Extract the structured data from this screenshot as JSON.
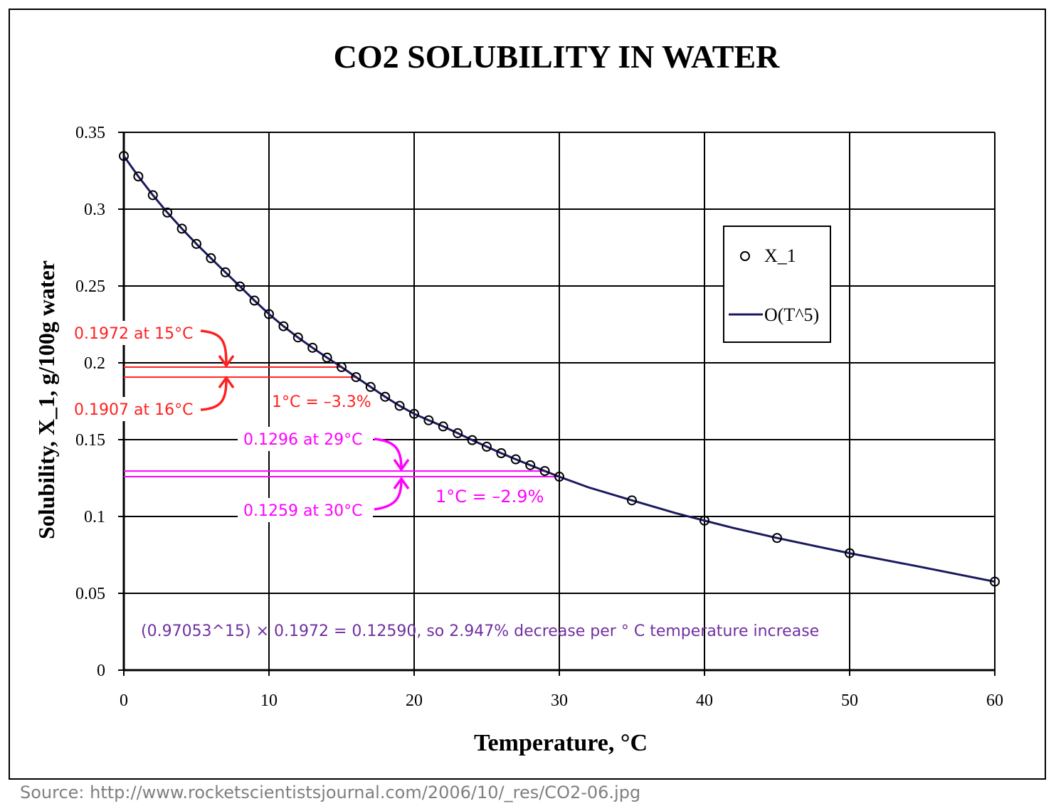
{
  "chart_data": {
    "type": "line",
    "title": "CO2 SOLUBILITY IN WATER",
    "xlabel": "Temperature, °C",
    "ylabel": "Solubility, X_1, g/100g water",
    "xlim": [
      0,
      60
    ],
    "ylim": [
      0,
      0.35
    ],
    "x_ticks": [
      0,
      10,
      20,
      30,
      40,
      50,
      60
    ],
    "x_tick_labels": [
      "0",
      "10",
      "20",
      "30",
      "40",
      "50",
      "60"
    ],
    "y_ticks": [
      0,
      0.05,
      0.1,
      0.15,
      0.2,
      0.25,
      0.3,
      0.35
    ],
    "y_tick_labels": [
      "0",
      "0.05",
      "0.1",
      "0.15",
      "0.2",
      "0.25",
      "0.3",
      "0.35"
    ],
    "grid": true,
    "legend_position": "right",
    "series": [
      {
        "name": "X_1",
        "kind": "markers",
        "marker": "open-circle",
        "color": "#000000",
        "x": [
          0,
          1,
          2,
          3,
          4,
          5,
          6,
          7,
          8,
          9,
          10,
          11,
          12,
          13,
          14,
          15,
          16,
          17,
          18,
          19,
          20,
          21,
          22,
          23,
          24,
          25,
          26,
          27,
          28,
          29,
          30,
          35,
          40,
          45,
          50,
          60
        ],
        "y": [
          0.3346,
          0.3213,
          0.3091,
          0.2978,
          0.2873,
          0.2774,
          0.2681,
          0.2589,
          0.2497,
          0.2405,
          0.2317,
          0.2238,
          0.2165,
          0.2098,
          0.2034,
          0.1972,
          0.1907,
          0.1843,
          0.1779,
          0.172,
          0.1668,
          0.1626,
          0.1586,
          0.1542,
          0.1497,
          0.1454,
          0.1412,
          0.1372,
          0.1334,
          0.1296,
          0.1259,
          0.1105,
          0.0973,
          0.086,
          0.0761,
          0.0576
        ]
      },
      {
        "name": "O(T^5)",
        "kind": "line",
        "color": "#1a1a5e",
        "x": [
          0,
          1,
          2,
          3,
          4,
          5,
          6,
          7,
          8,
          9,
          10,
          11,
          12,
          13,
          14,
          15,
          16,
          17,
          18,
          19,
          20,
          21,
          22,
          23,
          24,
          25,
          26,
          27,
          28,
          29,
          30,
          32,
          35,
          38,
          40,
          42,
          45,
          48,
          50,
          55,
          60
        ],
        "y": [
          0.3346,
          0.3213,
          0.3091,
          0.2978,
          0.2873,
          0.2774,
          0.2681,
          0.2589,
          0.2497,
          0.2405,
          0.2317,
          0.2238,
          0.2165,
          0.2098,
          0.2034,
          0.1972,
          0.1907,
          0.1843,
          0.1779,
          0.172,
          0.1668,
          0.1626,
          0.1586,
          0.1542,
          0.1497,
          0.1454,
          0.1412,
          0.1372,
          0.1334,
          0.1296,
          0.1259,
          0.119,
          0.1105,
          0.1022,
          0.0973,
          0.0925,
          0.086,
          0.08,
          0.0761,
          0.067,
          0.0576
        ]
      }
    ],
    "annotations": {
      "red": {
        "color": "#ff2020",
        "label_15": "0.1972 at 15°C",
        "label_16": "0.1907 at 16°C",
        "delta": "1°C = –3.3%",
        "y_15": 0.1972,
        "y_16": 0.1907,
        "x_end_15": 15,
        "x_end_16": 16
      },
      "magenta": {
        "color": "#ff00ff",
        "label_29": "0.1296 at 29°C",
        "label_30": "0.1259 at 30°C",
        "delta": "1°C = –2.9%",
        "y_29": 0.1296,
        "y_30": 0.1259,
        "x_end_29": 29,
        "x_end_30": 30
      },
      "formula": {
        "color": "#7030a0",
        "text": "(0.97053^15) × 0.1972 = 0.12590, so 2.947% decrease per ° C temperature increase"
      }
    }
  },
  "source": "Source:  http://www.rocketscientistsjournal.com/2006/10/_res/CO2-06.jpg"
}
